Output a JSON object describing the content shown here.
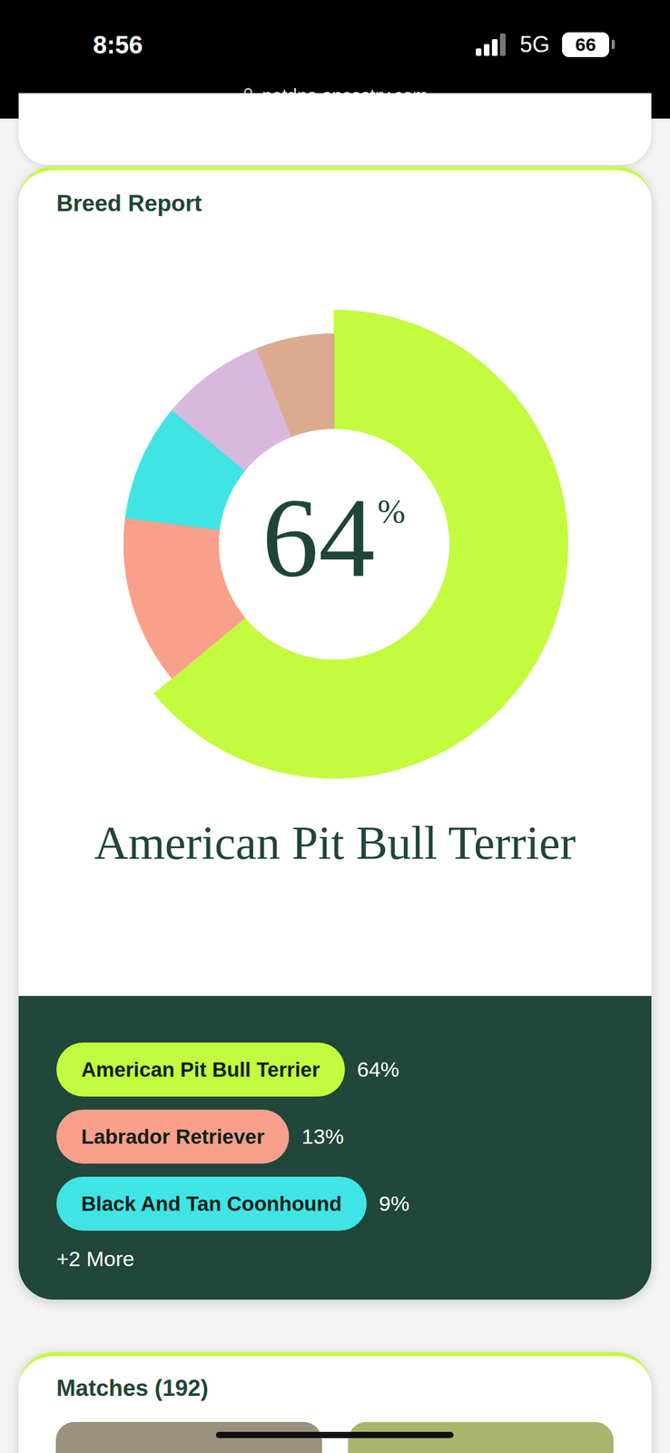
{
  "page": {
    "status_bar": {
      "time": "8:56",
      "network": "5G",
      "battery": "66"
    },
    "url": "petdna.ancestry.com",
    "next_section_title": "Matches (192)"
  },
  "chart_data": {
    "type": "donut",
    "title": "Breed Report",
    "center_label": "64%",
    "caption": "American Pit Bull Terrier",
    "categories": [
      "American Pit Bull Terrier",
      "Labrador Retriever",
      "Black And Tan Coonhound",
      null,
      null
    ],
    "values": [
      64,
      13,
      9,
      8,
      6
    ],
    "value_labels": [
      "64%",
      "13%",
      "9%",
      null,
      null
    ],
    "colors": [
      "#c3fb3e",
      "#f9a08b",
      "#40e4e4",
      "#d9b8de",
      "#dbaa8f"
    ],
    "legend": "bottom",
    "more_label": "+2 More",
    "data_labels": false,
    "tick_labels": false
  }
}
